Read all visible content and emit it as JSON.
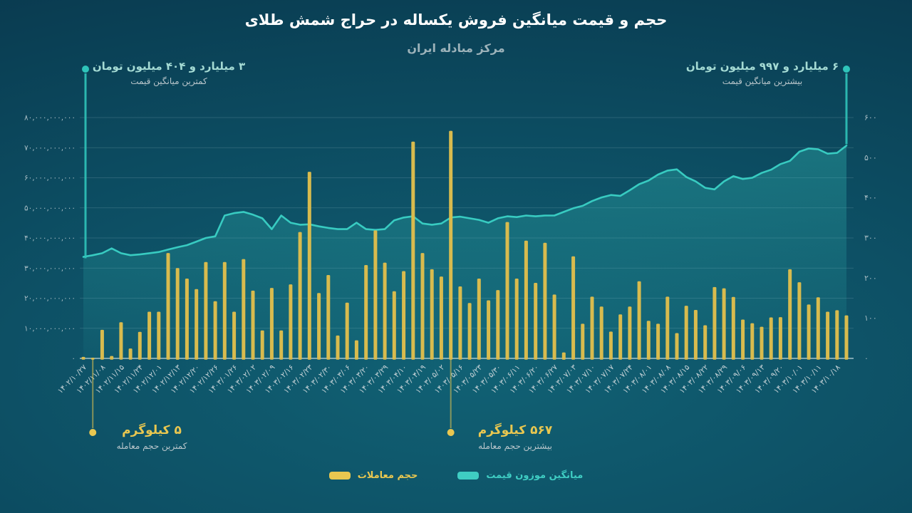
{
  "title": "حجم و قیمت میانگین فروش یکساله در حراج شمش طلای",
  "subtitle": "مرکز مبادله ایران",
  "annotations": {
    "min_price": {
      "value": "۳ میلیارد و ۴۰۴ میلیون تومان",
      "label": "کمترین میانگین قیمت"
    },
    "max_price": {
      "value": "۶ میلیارد و ۹۹۷ میلیون تومان",
      "label": "بیشترین میانگین قیمت"
    },
    "min_volume": {
      "value": "۵ کیلوگرم",
      "label": "کمترین حجم معامله"
    },
    "max_volume": {
      "value": "۵۶۷ کیلوگرم",
      "label": "بیشترین حجم معامله"
    }
  },
  "legend": {
    "items": [
      {
        "label": "حجم معاملات",
        "color": "#e9c750"
      },
      {
        "label": "میانگین موزون قیمت",
        "color": "#3fcdc3"
      }
    ]
  },
  "colors": {
    "bar": "#d8bb4e",
    "line": "#38cbc1",
    "area_top": "rgba(56,203,193,0.32)",
    "area_bottom": "rgba(56,203,193,0.05)",
    "teal_accent": "#2fc4ba",
    "yellow_accent": "#e9c750",
    "grid": "rgba(190,225,230,0.22)",
    "baseline": "rgba(225,240,243,0.85)",
    "axis_text": "#a7bcc4",
    "x_text": "#c9d5d9"
  },
  "chart_data": {
    "type": "combo-bar-area-line",
    "x_tick_labels": [
      "۱۴۰۲/۱۰/۲۷",
      "۱۴۰۲/۱۱/۰۸",
      "۱۴۰۲/۱۱/۱۵",
      "۱۴۰۲/۱۱/۲۴",
      "۱۴۰۲/۱۲/۰۱",
      "۱۴۰۲/۱۲/۱۳",
      "۱۴۰۲/۱۲/۲۰",
      "۱۴۰۲/۱۲/۲۶",
      "۱۴۰۳/۰۱/۲۶",
      "۱۴۰۳/۰۲/۰۲",
      "۱۴۰۳/۰۲/۰۹",
      "۱۴۰۳/۰۲/۱۶",
      "۱۴۰۳/۰۲/۲۳",
      "۱۴۰۳/۰۲/۳۰",
      "۱۴۰۳/۰۳/۰۶",
      "۱۴۰۳/۰۳/۲۰",
      "۱۴۰۳/۰۳/۲۹",
      "۱۴۰۳/۰۴/۱۰",
      "۱۴۰۳/۰۴/۱۹",
      "۱۴۰۳/۰۵/۰۲",
      "۱۴۰۳/۰۵/۱۶",
      "۱۴۰۳/۰۵/۲۳",
      "۱۴۰۳/۰۵/۳۰",
      "۱۴۰۳/۰۶/۱۱",
      "۱۴۰۳/۰۶/۲۰",
      "۱۴۰۳/۰۶/۲۷",
      "۱۴۰۳/۰۷/۰۳",
      "۱۴۰۳/۰۷/۱۰",
      "۱۴۰۳/۰۷/۱۷",
      "۱۴۰۳/۰۷/۲۴",
      "۱۴۰۳/۰۸/۰۱",
      "۱۴۰۳/۰۸/۰۸",
      "۱۴۰۳/۰۸/۱۵",
      "۱۴۰۳/۰۸/۲۲",
      "۱۴۰۳/۰۸/۲۹",
      "۱۴۰۳/۰۹/۰۶",
      "۱۴۰۳/۰۹/۱۳",
      "۱۴۰۳/۰۹/۲۰",
      "۱۴۰۳/۱۰/۰۱",
      "۱۴۰۳/۱۰/۱۱",
      "۱۴۰۳/۱۰/۱۸"
    ],
    "series": [
      {
        "name": "حجم معاملات",
        "type": "bar",
        "axis": "left",
        "values_billion": [
          0.5,
          0.2,
          9.5,
          0.8,
          12,
          3.3,
          8.8,
          15.5,
          15.5,
          35,
          30,
          26.5,
          23,
          32,
          19,
          32,
          15.5,
          33,
          22.5,
          9.3,
          23.4,
          9.3,
          24.6,
          42,
          62,
          21.7,
          27.7,
          7.6,
          18.5,
          6,
          31,
          42.5,
          31.8,
          22.3,
          29,
          72,
          35,
          29.6,
          27.2,
          75.6,
          23.9,
          18.4,
          26.5,
          19.3,
          22.7,
          45.3,
          26.5,
          39.1,
          25.1,
          38.4,
          21.2,
          2,
          33.9,
          11.5,
          20.5,
          17.2,
          8.9,
          14.6,
          17.2,
          25.6,
          12.5,
          11.5,
          20.5,
          8.4,
          17.5,
          16.1,
          11,
          23.7,
          23.3,
          20.4,
          12.9,
          11.7,
          10.5,
          13.6,
          13.7,
          29.6,
          25.3,
          17.9,
          20.3,
          15.5,
          16,
          14.3
        ]
      },
      {
        "name": "میانگین موزون قیمت",
        "type": "area-line",
        "axis": "right",
        "values": [
          253,
          257,
          262,
          274,
          262,
          257,
          259,
          262,
          265,
          271,
          277,
          282,
          291,
          300,
          304,
          356,
          362,
          365,
          358,
          349,
          322,
          356,
          338,
          333,
          334,
          329,
          325,
          322,
          322,
          338,
          322,
          320,
          322,
          344,
          351,
          354,
          336,
          333,
          336,
          351,
          353,
          349,
          345,
          338,
          349,
          354,
          352,
          356,
          354,
          356,
          356,
          365,
          374,
          380,
          392,
          401,
          407,
          405,
          419,
          434,
          443,
          458,
          468,
          471,
          452,
          441,
          425,
          421,
          441,
          454,
          447,
          450,
          462,
          470,
          484,
          492,
          515,
          523,
          521,
          510,
          512,
          530
        ]
      }
    ],
    "left_axis": {
      "ticks": [
        {
          "label": "۸۰,۰۰۰,۰۰۰,۰۰۰",
          "value": 80
        },
        {
          "label": "۷۰,۰۰۰,۰۰۰,۰۰۰",
          "value": 70
        },
        {
          "label": "۶۰,۰۰۰,۰۰۰,۰۰۰",
          "value": 60
        },
        {
          "label": "۵۰,۰۰۰,۰۰۰,۰۰۰",
          "value": 50
        },
        {
          "label": "۴۰,۰۰۰,۰۰۰,۰۰۰",
          "value": 40
        },
        {
          "label": "۳۰,۰۰۰,۰۰۰,۰۰۰",
          "value": 30
        },
        {
          "label": "۲۰,۰۰۰,۰۰۰,۰۰۰",
          "value": 20
        },
        {
          "label": "۱۰,۰۰۰,۰۰۰,۰۰۰",
          "value": 10
        },
        {
          "label": "۰",
          "value": 0
        }
      ]
    },
    "right_axis": {
      "ticks": [
        {
          "label": "۶۰۰",
          "value": 600
        },
        {
          "label": "۵۰۰",
          "value": 500
        },
        {
          "label": "۴۰۰",
          "value": 400
        },
        {
          "label": "۳۰۰",
          "value": 300
        },
        {
          "label": "۲۰۰",
          "value": 200
        },
        {
          "label": "۱۰۰",
          "value": 100
        },
        {
          "label": "۰",
          "value": 0
        }
      ]
    },
    "markers": {
      "min_volume_bar_index": 1,
      "max_volume_bar_index": 39
    }
  }
}
